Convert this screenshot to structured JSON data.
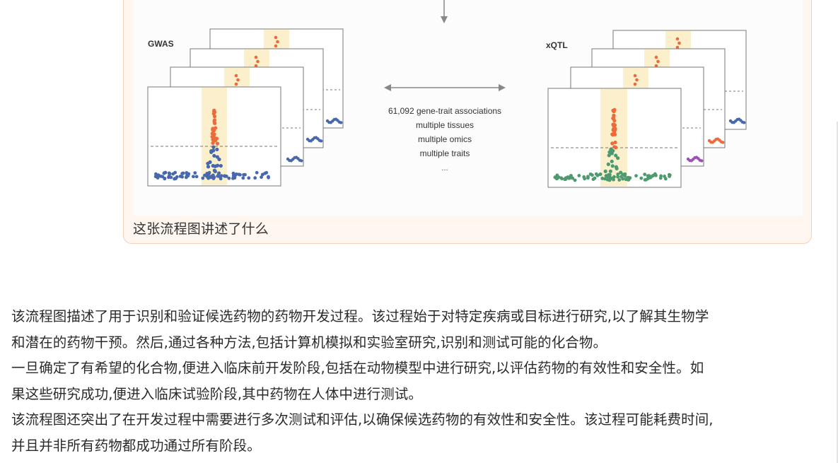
{
  "figure": {
    "left_panel_label": "GWAS",
    "right_panel_label": "xQTL",
    "center_lines": [
      "61,092 gene-trait associations",
      "multiple tissues",
      "multiple omics",
      "multiple traits",
      "..."
    ],
    "colors": {
      "orange": "#ee6a3b",
      "blue": "#4768ad",
      "green": "#4c9a6e",
      "purple": "#9a52b8",
      "highlight": "#fbefcc"
    }
  },
  "user_message": {
    "question": "这张流程图讲述了什么"
  },
  "answer": {
    "lines": [
      "该流程图描述了用于识别和验证候选药物的药物开发过程。该过程始于对特定疾病或目标进行研究,以了解其生物学",
      "和潜在的药物干预。然后,通过各种方法,包括计算机模拟和实验室研究,识别和测试可能的化合物。",
      "一旦确定了有希望的化合物,便进入临床前开发阶段,包括在动物模型中进行研究,以评估药物的有效性和安全性。如",
      "果这些研究成功,便进入临床试验阶段,其中药物在人体中进行测试。",
      "该流程图还突出了在开发过程中需要进行多次测试和评估,以确保候选药物的有效性和安全性。该过程可能耗费时间,",
      "并且并非所有药物都成功通过所有阶段。"
    ]
  }
}
